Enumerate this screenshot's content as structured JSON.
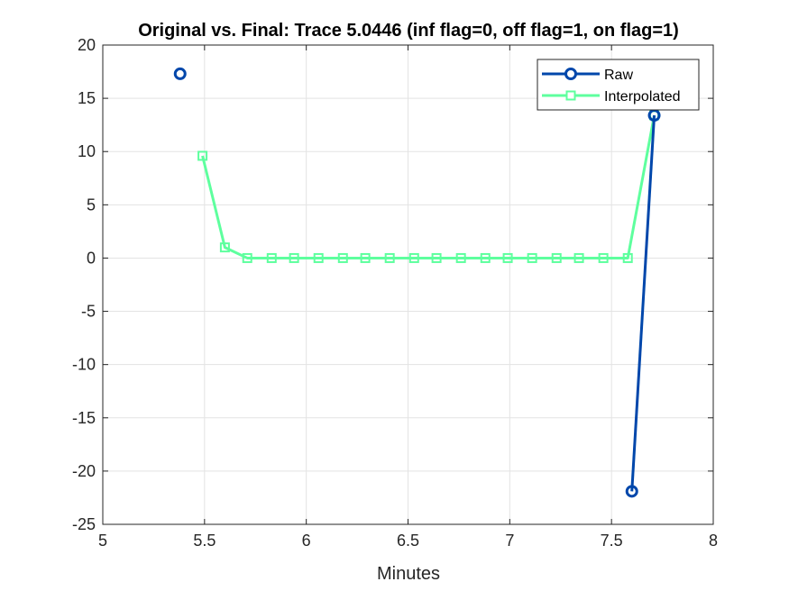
{
  "chart_data": {
    "type": "line",
    "title": "Original vs. Final: Trace 5.0446 (inf flag=0, off flag=1, on flag=1)",
    "xlabel": "Minutes",
    "ylabel": "",
    "xlim": [
      5,
      8
    ],
    "ylim": [
      -25,
      20
    ],
    "xticks": [
      5,
      5.5,
      6,
      6.5,
      7,
      7.5,
      8
    ],
    "xtick_labels": [
      "5",
      "5.5",
      "6",
      "6.5",
      "7",
      "7.5",
      "8"
    ],
    "yticks": [
      20,
      15,
      10,
      5,
      0,
      -5,
      -10,
      -15,
      -20,
      -25
    ],
    "ytick_labels": [
      "20",
      "15",
      "10",
      "5",
      "0",
      "-5",
      "-10",
      "-15",
      "-20",
      "-25"
    ],
    "grid": true,
    "legend_position": "top-right",
    "series": [
      {
        "name": "Raw",
        "color": "#0047ab",
        "marker": "circle",
        "segments": [
          {
            "x": [
              5.38
            ],
            "y": [
              17.3
            ]
          },
          {
            "x": [
              7.6,
              7.71
            ],
            "y": [
              -21.9,
              13.4
            ]
          }
        ]
      },
      {
        "name": "Interpolated",
        "color": "#5eff9e",
        "marker": "square",
        "segments": [
          {
            "x": [
              5.49,
              5.6,
              5.71,
              5.83,
              5.94,
              6.06,
              6.18,
              6.29,
              6.41,
              6.53,
              6.64,
              6.76,
              6.88,
              6.99,
              7.11,
              7.23,
              7.34,
              7.46,
              7.58,
              7.71
            ],
            "y": [
              9.6,
              1.0,
              0,
              0,
              0,
              0,
              0,
              0,
              0,
              0,
              0,
              0,
              0,
              0,
              0,
              0,
              0,
              0,
              0,
              13.4
            ]
          }
        ]
      }
    ]
  }
}
